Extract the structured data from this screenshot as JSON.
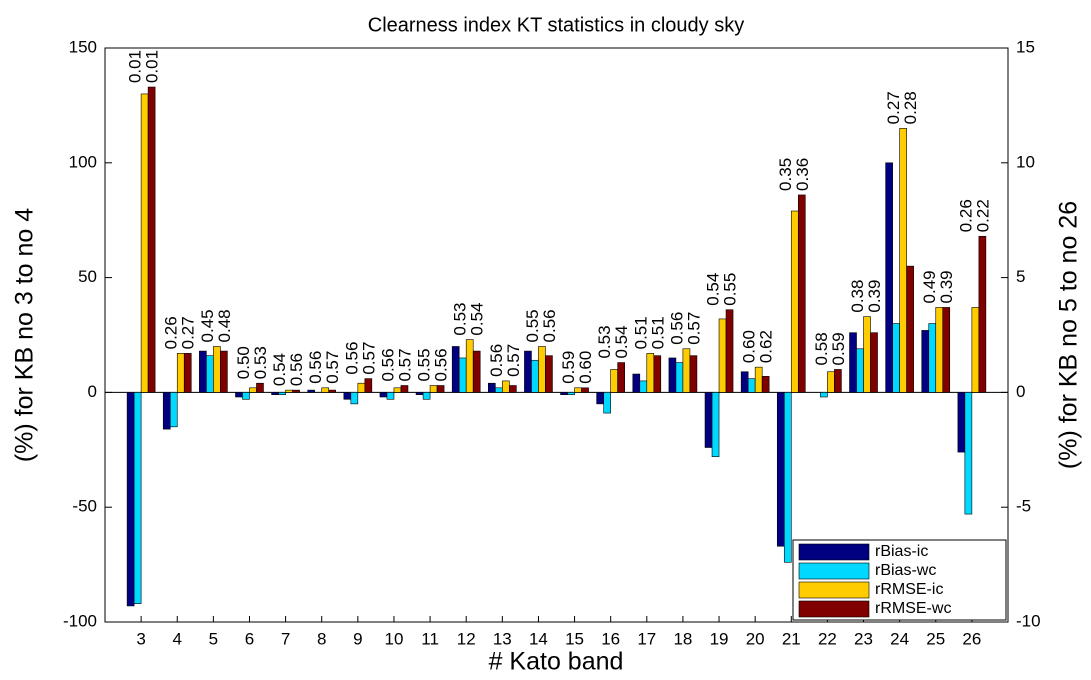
{
  "chart_data": [
    {
      "type": "bar",
      "title": "Clearness index KT statistics in cloudy sky",
      "xlabel": "# Kato band",
      "ylabel": "(%) for KB no 3 to no 4",
      "categories": [
        "3",
        "4"
      ],
      "ylim": [
        -100,
        150
      ],
      "yticks": [
        -100,
        -50,
        0,
        50,
        100,
        150
      ],
      "legend": "lower right",
      "series": [
        {
          "name": "rBias-ic",
          "color": "#000080",
          "values": [
            -93,
            -16
          ]
        },
        {
          "name": "rBias-wc",
          "color": "#00d8ff",
          "values": [
            -92,
            -15
          ]
        },
        {
          "name": "rRMSE-ic",
          "color": "#ffcc00",
          "values": [
            130,
            17
          ]
        },
        {
          "name": "rRMSE-wc",
          "color": "#800000",
          "values": [
            133,
            17
          ]
        }
      ],
      "ic_annotations": [
        "0.01",
        "0.26"
      ],
      "wc_annotations": [
        "0.01",
        "0.27"
      ],
      "ic_annotation_color": "#1f1fd0",
      "wc_annotation_color": "#d02020"
    },
    {
      "type": "bar",
      "y2label": "(%) for KB no 5 to no 26",
      "categories": [
        "5",
        "6",
        "7",
        "8",
        "9",
        "10",
        "11",
        "12",
        "13",
        "14",
        "15",
        "16",
        "17",
        "18",
        "19",
        "20",
        "21",
        "22",
        "23",
        "24",
        "25",
        "26"
      ],
      "y2lim": [
        -10,
        15
      ],
      "y2ticks": [
        -10,
        -5,
        0,
        5,
        10,
        15
      ],
      "series": [
        {
          "name": "rBias-ic",
          "color": "#000080",
          "axis": "y2",
          "values": [
            1.8,
            -0.2,
            -0.1,
            0.1,
            -0.3,
            -0.2,
            -0.1,
            2.0,
            0.4,
            1.8,
            -0.1,
            -0.5,
            0.8,
            1.5,
            -2.4,
            0.9,
            -6.7,
            0,
            2.6,
            10.0,
            2.7,
            -2.6
          ]
        },
        {
          "name": "rBias-wc",
          "color": "#00d8ff",
          "axis": "y2",
          "values": [
            1.6,
            -0.3,
            -0.1,
            0,
            -0.5,
            -0.3,
            -0.3,
            1.5,
            0.2,
            1.4,
            -0.1,
            -0.9,
            0.5,
            1.3,
            -2.8,
            0.6,
            -7.4,
            -0.2,
            1.9,
            3.0,
            3.0,
            -5.3
          ]
        },
        {
          "name": "rRMSE-ic",
          "color": "#ffcc00",
          "axis": "y2",
          "values": [
            2.0,
            0.2,
            0.1,
            0.2,
            0.4,
            0.2,
            0.3,
            2.3,
            0.5,
            2.0,
            0.2,
            1.0,
            1.7,
            1.9,
            3.2,
            1.1,
            7.9,
            0.9,
            3.3,
            11.5,
            3.7,
            3.7
          ]
        },
        {
          "name": "rRMSE-wc",
          "color": "#800000",
          "axis": "y2",
          "values": [
            1.8,
            0.4,
            0.1,
            0.1,
            0.6,
            0.3,
            0.3,
            1.8,
            0.3,
            1.6,
            0.2,
            1.3,
            1.6,
            1.6,
            3.6,
            0.7,
            8.6,
            1.0,
            2.6,
            5.5,
            3.7,
            6.8
          ]
        }
      ],
      "ic_annotations": [
        "0.45",
        "0.50",
        "0.54",
        "0.56",
        "0.56",
        "0.56",
        "0.55",
        "0.53",
        "0.56",
        "0.55",
        "0.59",
        "0.53",
        "0.51",
        "0.56",
        "0.54",
        "0.60",
        "0.35",
        "0.58",
        "0.38",
        "0.27",
        "0.49",
        "0.26"
      ],
      "wc_annotations": [
        "0.48",
        "0.53",
        "0.56",
        "0.57",
        "0.57",
        "0.57",
        "0.56",
        "0.54",
        "0.57",
        "0.56",
        "0.60",
        "0.54",
        "0.51",
        "0.57",
        "0.55",
        "0.62",
        "0.36",
        "0.59",
        "0.39",
        "0.28",
        "0.39",
        "0.22"
      ],
      "ic_annotation_color": "#1f1fd0",
      "wc_annotation_color": "#d02020"
    }
  ]
}
